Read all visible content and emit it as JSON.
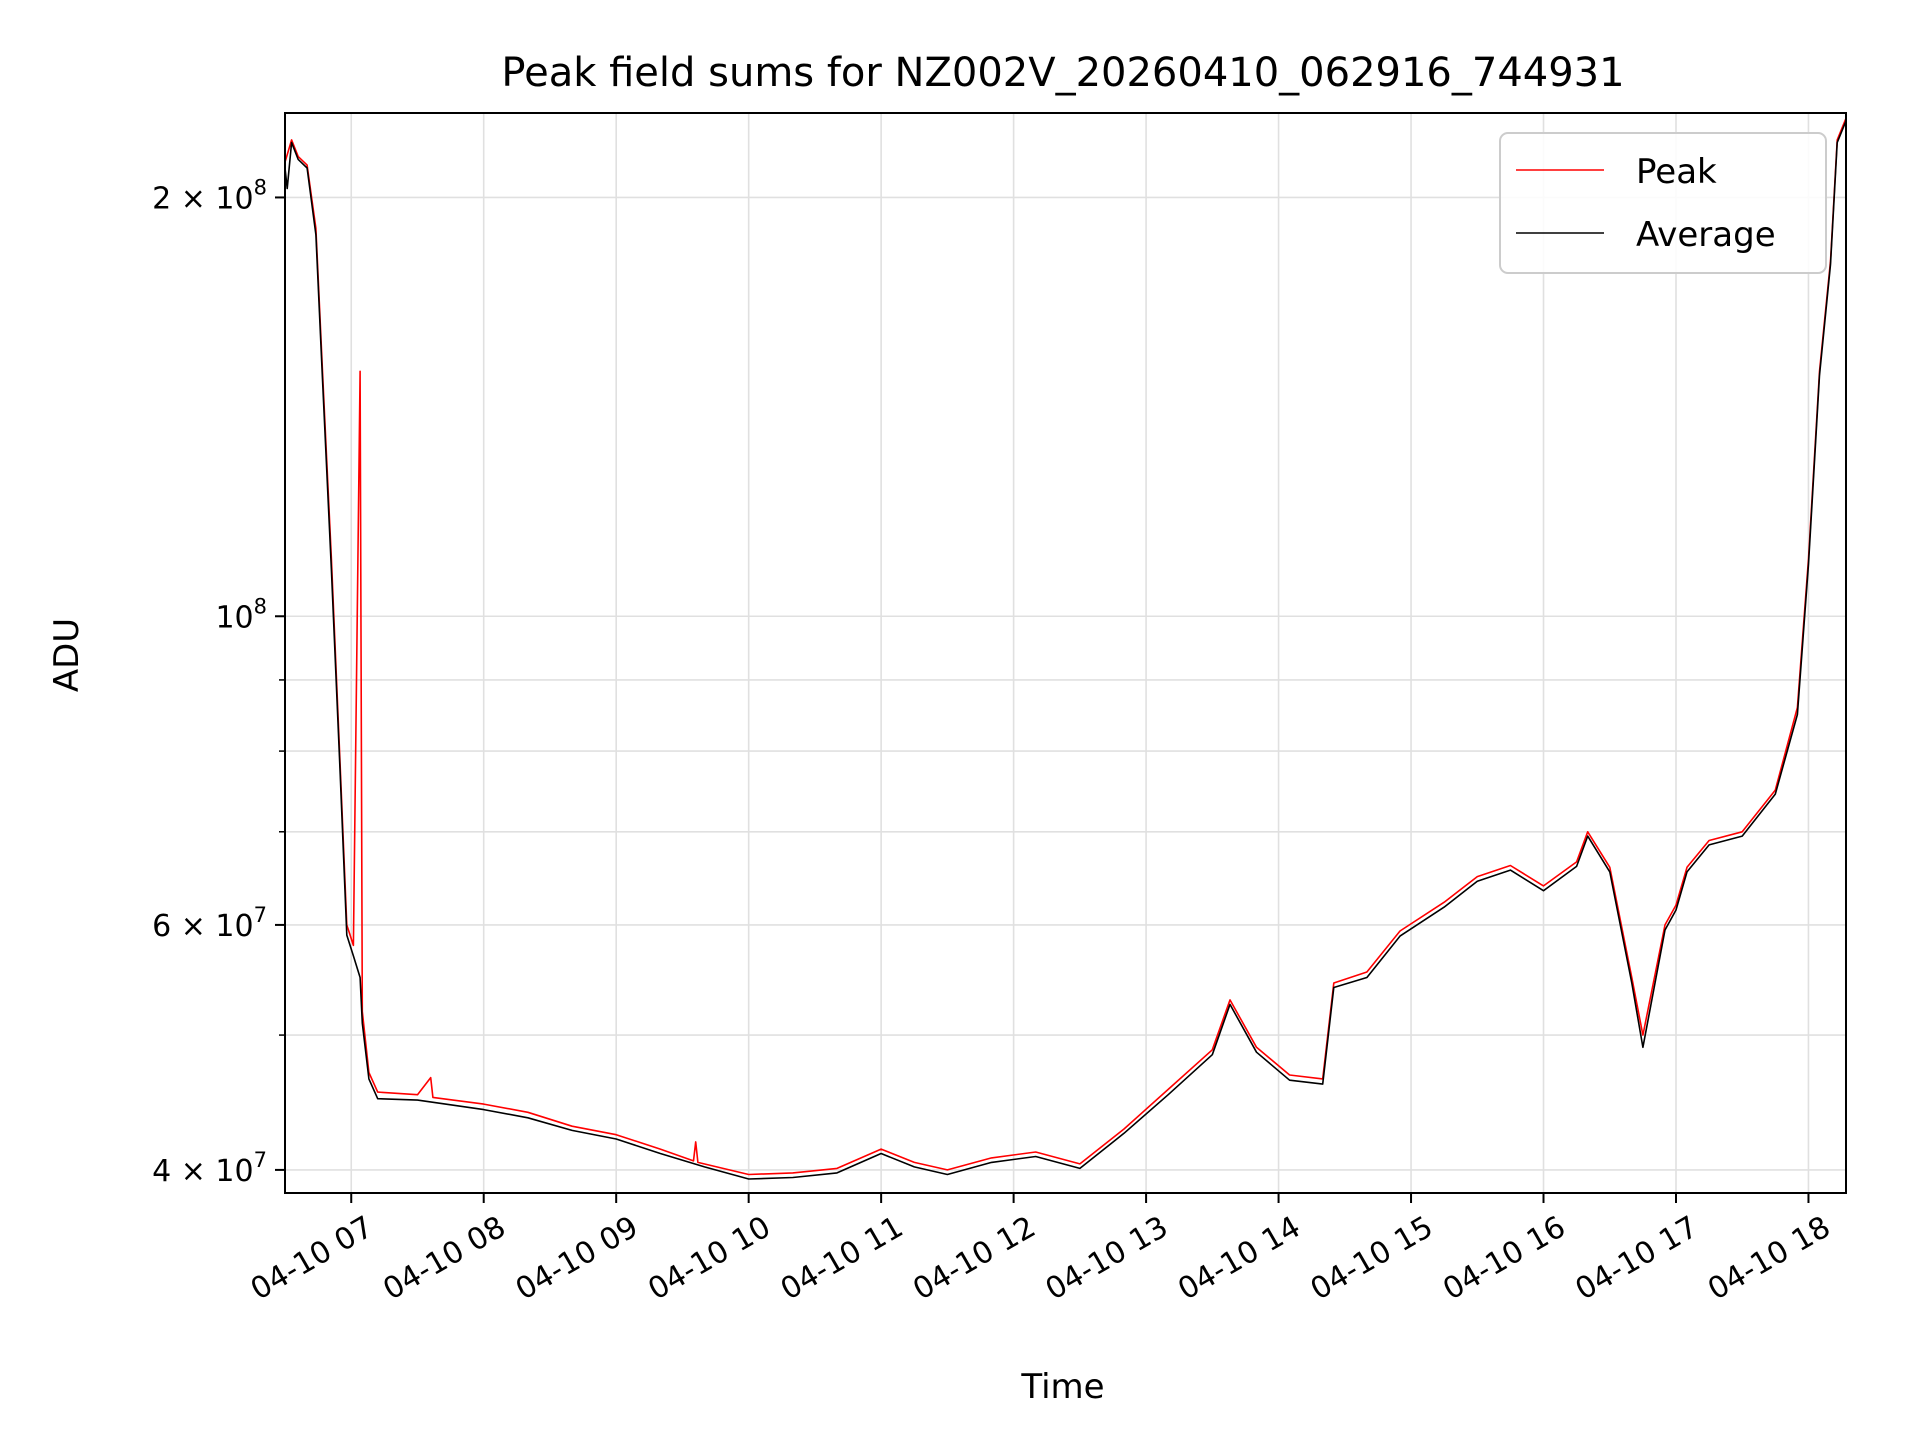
{
  "chart_data": {
    "type": "line",
    "title": "Peak field sums for NZ002V_20260410_062916_744931",
    "xlabel": "Time",
    "ylabel": "ADU",
    "x_scale": "time",
    "y_scale": "log",
    "xlim": [
      "2026-04-10 06:30",
      "2026-04-10 18:17"
    ],
    "ylim": [
      38500000,
      230000000
    ],
    "x_ticks": [
      "04-10 07",
      "04-10 08",
      "04-10 09",
      "04-10 10",
      "04-10 11",
      "04-10 12",
      "04-10 13",
      "04-10 14",
      "04-10 15",
      "04-10 16",
      "04-10 17",
      "04-10 18"
    ],
    "y_ticks": [
      {
        "value": 40000000,
        "label": "4 × 10",
        "exp": "7"
      },
      {
        "value": 60000000,
        "label": "6 × 10",
        "exp": "7"
      },
      {
        "value": 100000000,
        "label": "10",
        "exp": "8"
      },
      {
        "value": 200000000,
        "label": "2 × 10",
        "exp": "8"
      }
    ],
    "y_minor_ticks": [
      50000000,
      70000000,
      80000000,
      90000000
    ],
    "grid": true,
    "legend": {
      "position": "top-right"
    },
    "series": [
      {
        "name": "Peak",
        "color": "#ff0000",
        "points": [
          [
            "2026-04-10 06:30",
            212000000
          ],
          [
            "2026-04-10 06:33",
            220000000
          ],
          [
            "2026-04-10 06:36",
            214000000
          ],
          [
            "2026-04-10 06:40",
            211000000
          ],
          [
            "2026-04-10 06:44",
            190000000
          ],
          [
            "2026-04-10 06:47",
            150000000
          ],
          [
            "2026-04-10 06:51",
            110000000
          ],
          [
            "2026-04-10 06:55",
            78000000
          ],
          [
            "2026-04-10 06:58",
            60000000
          ],
          [
            "2026-04-10 07:01",
            58000000
          ],
          [
            "2026-04-10 07:04",
            150000000
          ],
          [
            "2026-04-10 07:05",
            52000000
          ],
          [
            "2026-04-10 07:08",
            47000000
          ],
          [
            "2026-04-10 07:12",
            45500000
          ],
          [
            "2026-04-10 07:30",
            45300000
          ],
          [
            "2026-04-10 07:36",
            46600000
          ],
          [
            "2026-04-10 07:37",
            45100000
          ],
          [
            "2026-04-10 08:00",
            44600000
          ],
          [
            "2026-04-10 08:20",
            44000000
          ],
          [
            "2026-04-10 08:40",
            43000000
          ],
          [
            "2026-04-10 09:00",
            42400000
          ],
          [
            "2026-04-10 09:20",
            41400000
          ],
          [
            "2026-04-10 09:35",
            40600000
          ],
          [
            "2026-04-10 09:36",
            41900000
          ],
          [
            "2026-04-10 09:37",
            40500000
          ],
          [
            "2026-04-10 10:00",
            39700000
          ],
          [
            "2026-04-10 10:20",
            39800000
          ],
          [
            "2026-04-10 10:40",
            40100000
          ],
          [
            "2026-04-10 11:00",
            41400000
          ],
          [
            "2026-04-10 11:15",
            40500000
          ],
          [
            "2026-04-10 11:30",
            40000000
          ],
          [
            "2026-04-10 11:50",
            40800000
          ],
          [
            "2026-04-10 12:10",
            41200000
          ],
          [
            "2026-04-10 12:30",
            40400000
          ],
          [
            "2026-04-10 12:50",
            42800000
          ],
          [
            "2026-04-10 13:10",
            45700000
          ],
          [
            "2026-04-10 13:30",
            48800000
          ],
          [
            "2026-04-10 13:38",
            53000000
          ],
          [
            "2026-04-10 13:50",
            49000000
          ],
          [
            "2026-04-10 14:05",
            46800000
          ],
          [
            "2026-04-10 14:20",
            46500000
          ],
          [
            "2026-04-10 14:25",
            54500000
          ],
          [
            "2026-04-10 14:40",
            55500000
          ],
          [
            "2026-04-10 14:55",
            59400000
          ],
          [
            "2026-04-10 15:15",
            62300000
          ],
          [
            "2026-04-10 15:30",
            65000000
          ],
          [
            "2026-04-10 15:45",
            66200000
          ],
          [
            "2026-04-10 16:00",
            64000000
          ],
          [
            "2026-04-10 16:15",
            66600000
          ],
          [
            "2026-04-10 16:20",
            70000000
          ],
          [
            "2026-04-10 16:30",
            66000000
          ],
          [
            "2026-04-10 16:40",
            55000000
          ],
          [
            "2026-04-10 16:45",
            50000000
          ],
          [
            "2026-04-10 16:55",
            60000000
          ],
          [
            "2026-04-10 17:00",
            62000000
          ],
          [
            "2026-04-10 17:05",
            66000000
          ],
          [
            "2026-04-10 17:15",
            69000000
          ],
          [
            "2026-04-10 17:30",
            70000000
          ],
          [
            "2026-04-10 17:45",
            75000000
          ],
          [
            "2026-04-10 17:55",
            86000000
          ],
          [
            "2026-04-10 18:00",
            110000000
          ],
          [
            "2026-04-10 18:05",
            150000000
          ],
          [
            "2026-04-10 18:10",
            180000000
          ],
          [
            "2026-04-10 18:13",
            220000000
          ],
          [
            "2026-04-10 18:17",
            228000000
          ]
        ]
      },
      {
        "name": "Average",
        "color": "#000000",
        "points": [
          [
            "2026-04-10 06:30",
            210000000
          ],
          [
            "2026-04-10 06:31",
            203000000
          ],
          [
            "2026-04-10 06:33",
            219000000
          ],
          [
            "2026-04-10 06:36",
            213000000
          ],
          [
            "2026-04-10 06:40",
            210000000
          ],
          [
            "2026-04-10 06:44",
            188000000
          ],
          [
            "2026-04-10 06:47",
            148000000
          ],
          [
            "2026-04-10 06:51",
            108000000
          ],
          [
            "2026-04-10 06:55",
            77000000
          ],
          [
            "2026-04-10 06:58",
            59000000
          ],
          [
            "2026-04-10 07:01",
            57000000
          ],
          [
            "2026-04-10 07:04",
            55000000
          ],
          [
            "2026-04-10 07:05",
            51000000
          ],
          [
            "2026-04-10 07:08",
            46500000
          ],
          [
            "2026-04-10 07:12",
            45000000
          ],
          [
            "2026-04-10 07:30",
            44900000
          ],
          [
            "2026-04-10 08:00",
            44200000
          ],
          [
            "2026-04-10 08:20",
            43600000
          ],
          [
            "2026-04-10 08:40",
            42700000
          ],
          [
            "2026-04-10 09:00",
            42100000
          ],
          [
            "2026-04-10 09:20",
            41100000
          ],
          [
            "2026-04-10 09:40",
            40200000
          ],
          [
            "2026-04-10 10:00",
            39400000
          ],
          [
            "2026-04-10 10:20",
            39500000
          ],
          [
            "2026-04-10 10:40",
            39800000
          ],
          [
            "2026-04-10 11:00",
            41100000
          ],
          [
            "2026-04-10 11:15",
            40200000
          ],
          [
            "2026-04-10 11:30",
            39700000
          ],
          [
            "2026-04-10 11:50",
            40500000
          ],
          [
            "2026-04-10 12:10",
            40900000
          ],
          [
            "2026-04-10 12:30",
            40100000
          ],
          [
            "2026-04-10 12:50",
            42500000
          ],
          [
            "2026-04-10 13:10",
            45300000
          ],
          [
            "2026-04-10 13:30",
            48400000
          ],
          [
            "2026-04-10 13:38",
            52600000
          ],
          [
            "2026-04-10 13:50",
            48600000
          ],
          [
            "2026-04-10 14:05",
            46400000
          ],
          [
            "2026-04-10 14:20",
            46100000
          ],
          [
            "2026-04-10 14:25",
            54100000
          ],
          [
            "2026-04-10 14:40",
            55000000
          ],
          [
            "2026-04-10 14:55",
            58900000
          ],
          [
            "2026-04-10 15:15",
            61800000
          ],
          [
            "2026-04-10 15:30",
            64500000
          ],
          [
            "2026-04-10 15:45",
            65700000
          ],
          [
            "2026-04-10 16:00",
            63500000
          ],
          [
            "2026-04-10 16:15",
            66100000
          ],
          [
            "2026-04-10 16:20",
            69500000
          ],
          [
            "2026-04-10 16:30",
            65500000
          ],
          [
            "2026-04-10 16:40",
            54500000
          ],
          [
            "2026-04-10 16:45",
            49000000
          ],
          [
            "2026-04-10 16:55",
            59500000
          ],
          [
            "2026-04-10 17:00",
            61500000
          ],
          [
            "2026-04-10 17:05",
            65500000
          ],
          [
            "2026-04-10 17:15",
            68500000
          ],
          [
            "2026-04-10 17:30",
            69500000
          ],
          [
            "2026-04-10 17:45",
            74500000
          ],
          [
            "2026-04-10 17:55",
            85000000
          ],
          [
            "2026-04-10 18:00",
            109000000
          ],
          [
            "2026-04-10 18:05",
            149000000
          ],
          [
            "2026-04-10 18:10",
            179000000
          ],
          [
            "2026-04-10 18:13",
            219000000
          ],
          [
            "2026-04-10 18:17",
            227000000
          ]
        ]
      }
    ]
  }
}
